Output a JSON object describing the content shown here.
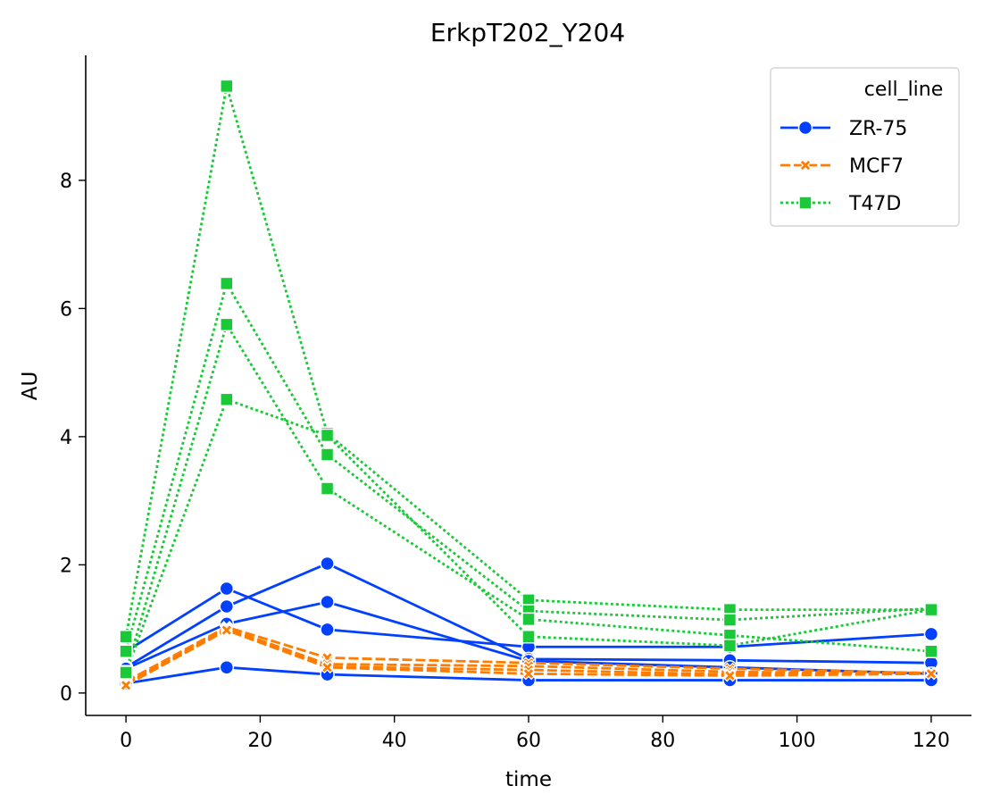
{
  "chart_data": {
    "type": "line",
    "title": "ErkpT202_Y204",
    "xlabel": "time",
    "ylabel": "AU",
    "xlim": [
      -6,
      126
    ],
    "ylim": [
      -0.35,
      9.95
    ],
    "xticks": [
      0,
      20,
      40,
      60,
      80,
      100,
      120
    ],
    "yticks": [
      0,
      2,
      4,
      6,
      8
    ],
    "grid": false,
    "legend": {
      "title": "cell_line",
      "placement": "top-right",
      "entries": [
        "ZR-75",
        "MCF7",
        "T47D"
      ]
    },
    "x": [
      0,
      15,
      30,
      60,
      90,
      120
    ],
    "groups": [
      {
        "cell_line": "ZR-75",
        "color": "#0140ff",
        "dash": "solid",
        "marker": "circle",
        "lines": [
          [
            0.65,
            1.63,
            0.99,
            0.72,
            0.72,
            0.92
          ],
          [
            0.4,
            1.35,
            2.02,
            0.53,
            0.51,
            0.47
          ],
          [
            0.38,
            1.08,
            1.42,
            0.5,
            0.4,
            0.3
          ],
          [
            0.15,
            0.4,
            0.29,
            0.2,
            0.2,
            0.2
          ]
        ]
      },
      {
        "cell_line": "MCF7",
        "color": "#ff7c00",
        "dash": "dashed",
        "marker": "x",
        "lines": [
          [
            0.18,
            1.03,
            0.55,
            0.47,
            0.38,
            0.31
          ],
          [
            0.15,
            1.01,
            0.45,
            0.42,
            0.33,
            0.3
          ],
          [
            0.13,
            0.99,
            0.41,
            0.36,
            0.29,
            0.32
          ],
          [
            0.12,
            0.98,
            0.4,
            0.3,
            0.27,
            0.3
          ]
        ]
      },
      {
        "cell_line": "T47D",
        "color": "#1ac938",
        "dash": "dotted",
        "marker": "square",
        "lines": [
          [
            0.88,
            9.47,
            4.05,
            1.45,
            1.3,
            1.3
          ],
          [
            0.65,
            6.39,
            3.72,
            1.28,
            1.14,
            1.32
          ],
          [
            0.33,
            5.75,
            3.19,
            1.15,
            0.9,
            0.65
          ],
          [
            0.32,
            4.58,
            4.02,
            0.88,
            0.74,
            1.3
          ]
        ]
      }
    ]
  }
}
